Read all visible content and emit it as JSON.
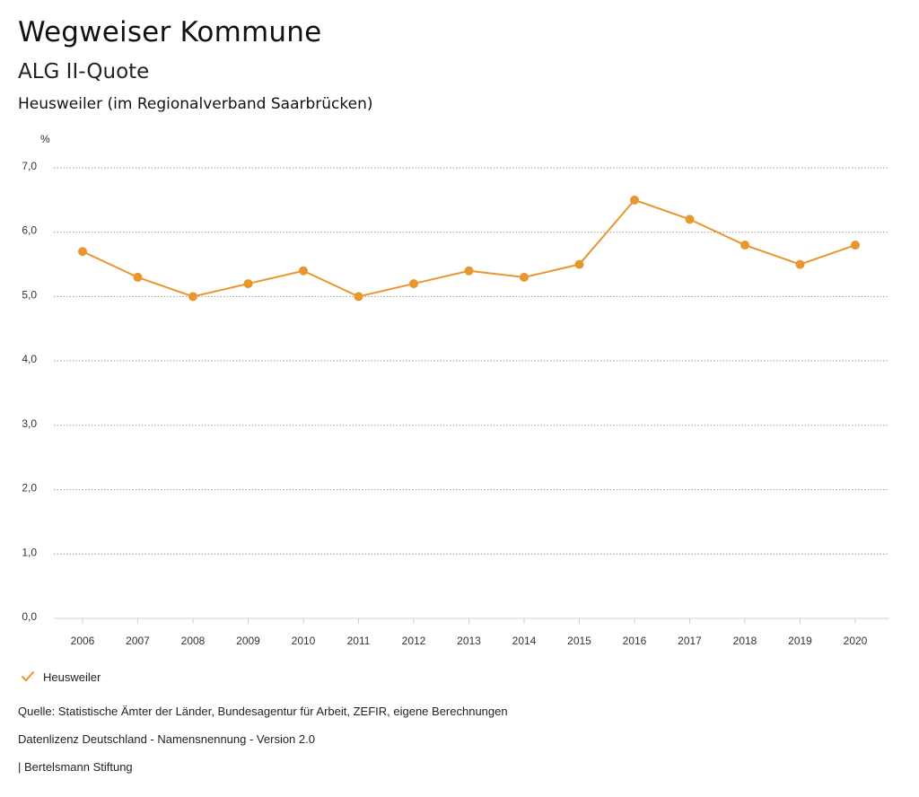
{
  "header": {
    "title": "Wegweiser Kommune",
    "subtitle": "ALG II-Quote",
    "region": "Heusweiler (im Regionalverband Saarbrücken)"
  },
  "chart_data": {
    "type": "line",
    "title": "ALG II-Quote",
    "subtitle": "Heusweiler (im Regionalverband Saarbrücken)",
    "ylabel": "%",
    "xlabel": "",
    "ylim": [
      0,
      7
    ],
    "yticks": [
      "0,0",
      "1,0",
      "2,0",
      "3,0",
      "4,0",
      "5,0",
      "6,0",
      "7,0"
    ],
    "grid": true,
    "categories": [
      "2006",
      "2007",
      "2008",
      "2009",
      "2010",
      "2011",
      "2012",
      "2013",
      "2014",
      "2015",
      "2016",
      "2017",
      "2018",
      "2019",
      "2020"
    ],
    "series": [
      {
        "name": "Heusweiler",
        "color": "#e8962e",
        "values": [
          5.7,
          5.3,
          5.0,
          5.2,
          5.4,
          5.0,
          5.2,
          5.4,
          5.3,
          5.5,
          6.5,
          6.2,
          5.8,
          5.5,
          5.8
        ]
      }
    ],
    "legend": "bottom-left"
  },
  "legend": {
    "label": "Heusweiler",
    "color": "#e8962e"
  },
  "footer": {
    "source": "Quelle: Statistische Ämter der Länder, Bundesagentur für Arbeit, ZEFIR, eigene Berechnungen",
    "license": "Datenlizenz Deutschland - Namensnennung - Version 2.0",
    "publisher": "| Bertelsmann Stiftung"
  }
}
